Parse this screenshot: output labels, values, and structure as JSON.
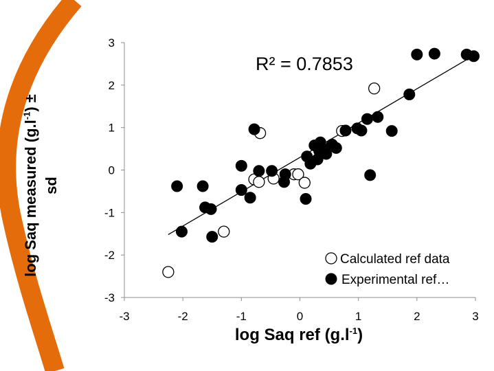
{
  "chart_data": {
    "type": "scatter",
    "xlabel": {
      "pre": "log Saq ref (g.l",
      "sup": "-1",
      "post": ")"
    },
    "ylabel": {
      "line1_pre": "log Saq measured (g.l",
      "line1_sup": "-1",
      "line1_post": ") ±",
      "line2": "sd"
    },
    "xlim": [
      -3,
      3
    ],
    "ylim": [
      -3,
      3
    ],
    "x_ticks": [
      "-3",
      "-2",
      "-1",
      "0",
      "1",
      "2",
      "3"
    ],
    "y_ticks": [
      "-3",
      "-2",
      "-1",
      "0",
      "1",
      "2",
      "3"
    ],
    "annotation": "R² = 0.7853",
    "trendline": {
      "x": [
        -2.25,
        2.95
      ],
      "y": [
        -1.52,
        2.68
      ]
    },
    "legend_position": "bottom-right",
    "colors": {
      "accent_arc": "#E46C0A",
      "filled": "#000000",
      "open_fill": "#ffffff",
      "marker_edge": "#000000"
    },
    "series": [
      {
        "name": "Calculated ref data",
        "marker": "open-circle",
        "points": [
          [
            -2.25,
            -2.4
          ],
          [
            -1.3,
            -1.45
          ],
          [
            -0.78,
            -0.22
          ],
          [
            -0.7,
            -0.28
          ],
          [
            -0.68,
            0.87
          ],
          [
            -0.45,
            -0.2
          ],
          [
            -0.1,
            -0.1
          ],
          [
            -0.03,
            -0.1
          ],
          [
            0.08,
            -0.3
          ],
          [
            0.72,
            0.92
          ],
          [
            1.27,
            1.92
          ]
        ]
      },
      {
        "name": "Experimental ref…",
        "marker": "filled-circle",
        "points": [
          [
            -2.1,
            -0.38
          ],
          [
            -2.02,
            -1.45
          ],
          [
            -1.66,
            -0.38
          ],
          [
            -1.62,
            -0.88
          ],
          [
            -1.52,
            -0.92
          ],
          [
            -1.5,
            -1.57
          ],
          [
            -1.0,
            0.1
          ],
          [
            -1.0,
            -0.47
          ],
          [
            -0.85,
            -0.65
          ],
          [
            -0.78,
            0.96
          ],
          [
            -0.7,
            -0.02
          ],
          [
            -0.48,
            -0.02
          ],
          [
            -0.27,
            -0.28
          ],
          [
            -0.25,
            -0.1
          ],
          [
            0.1,
            -0.68
          ],
          [
            0.12,
            0.32
          ],
          [
            0.18,
            0.15
          ],
          [
            0.25,
            0.58
          ],
          [
            0.3,
            0.25
          ],
          [
            0.33,
            0.45
          ],
          [
            0.35,
            0.65
          ],
          [
            0.4,
            0.5
          ],
          [
            0.45,
            0.38
          ],
          [
            0.55,
            0.6
          ],
          [
            0.62,
            0.52
          ],
          [
            0.78,
            0.93
          ],
          [
            0.98,
            0.98
          ],
          [
            1.05,
            0.93
          ],
          [
            1.15,
            1.2
          ],
          [
            1.2,
            -0.12
          ],
          [
            1.33,
            1.25
          ],
          [
            1.57,
            0.92
          ],
          [
            1.87,
            1.78
          ],
          [
            2.0,
            2.72
          ],
          [
            2.3,
            2.74
          ],
          [
            2.85,
            2.72
          ],
          [
            2.97,
            2.68
          ]
        ]
      }
    ]
  }
}
